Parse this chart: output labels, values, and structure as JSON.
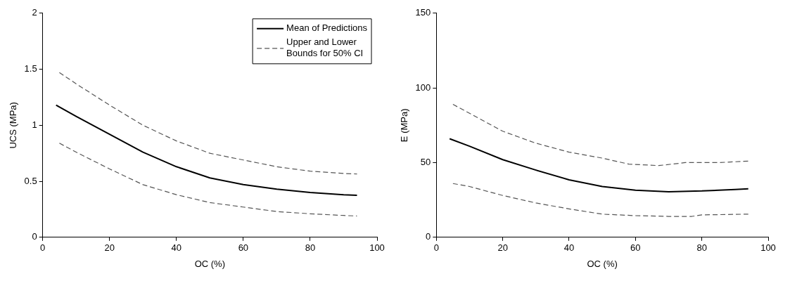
{
  "chart_data": [
    {
      "type": "line",
      "xlabel": "OC (%)",
      "ylabel": "UCS (MPa)",
      "xlim": [
        0,
        100
      ],
      "xticks": [
        0,
        20,
        40,
        60,
        80,
        100
      ],
      "ylim": [
        0,
        2
      ],
      "yticks": [
        0,
        0.5,
        1,
        1.5,
        2
      ],
      "grid": false,
      "legend": "top right",
      "marker": "none",
      "series": [
        {
          "name": "Mean of Predictions",
          "color": "#000000",
          "line_style": "solid",
          "x": [
            4,
            10,
            20,
            30,
            40,
            50,
            60,
            70,
            80,
            90,
            94
          ],
          "values": [
            1.18,
            1.08,
            0.92,
            0.76,
            0.63,
            0.53,
            0.47,
            0.43,
            0.4,
            0.38,
            0.375
          ]
        },
        {
          "name": "Upper and Lower Bounds for 50% CI",
          "color": "#555555",
          "line_style": "dashed",
          "x": [
            5,
            10,
            20,
            30,
            40,
            50,
            60,
            70,
            80,
            90,
            94
          ],
          "values": [
            1.47,
            1.37,
            1.18,
            1.0,
            0.86,
            0.75,
            0.69,
            0.63,
            0.59,
            0.57,
            0.565
          ]
        },
        {
          "color": "#555555",
          "line_style": "dashed",
          "x": [
            5,
            10,
            20,
            30,
            40,
            50,
            60,
            70,
            80,
            90,
            94
          ],
          "values": [
            0.84,
            0.76,
            0.61,
            0.47,
            0.38,
            0.31,
            0.27,
            0.23,
            0.21,
            0.195,
            0.19
          ]
        }
      ]
    },
    {
      "type": "line",
      "xlabel": "OC (%)",
      "ylabel": "E (MPa)",
      "xlim": [
        0,
        100
      ],
      "xticks": [
        0,
        20,
        40,
        60,
        80,
        100
      ],
      "ylim": [
        0,
        150
      ],
      "yticks": [
        0,
        50,
        100,
        150
      ],
      "grid": false,
      "marker": "none",
      "series": [
        {
          "color": "#000000",
          "line_style": "solid",
          "x": [
            4,
            10,
            20,
            30,
            40,
            50,
            60,
            70,
            80,
            90,
            94
          ],
          "values": [
            66,
            61,
            52,
            45,
            38.5,
            34,
            31.5,
            30.5,
            31,
            32,
            32.5
          ]
        },
        {
          "color": "#555555",
          "line_style": "dashed",
          "x": [
            5,
            10,
            20,
            30,
            40,
            50,
            58,
            67,
            75,
            85,
            94
          ],
          "values": [
            89,
            83,
            71,
            63,
            57,
            53,
            49,
            48,
            50,
            50,
            51
          ]
        },
        {
          "color": "#555555",
          "line_style": "dashed",
          "x": [
            5,
            10,
            20,
            30,
            40,
            50,
            60,
            70,
            77,
            80,
            94
          ],
          "values": [
            36,
            34,
            28,
            23,
            19,
            15.5,
            14.5,
            14,
            14,
            15,
            15.5
          ]
        }
      ]
    }
  ]
}
